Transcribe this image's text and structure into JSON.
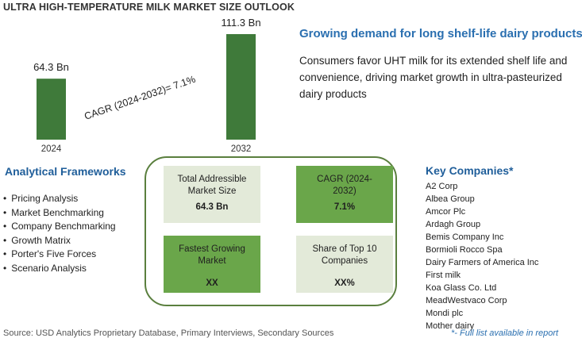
{
  "title": "ULTRA HIGH-TEMPERATURE MILK MARKET SIZE OUTLOOK",
  "chart_data": {
    "type": "bar",
    "categories": [
      "2024",
      "2032"
    ],
    "values": [
      64.3,
      111.3
    ],
    "value_labels": [
      "64.3 Bn",
      "111.3 Bn"
    ],
    "annotation": "CAGR (2024-2032)=  7.1%",
    "bar_color": "#3f7a3a"
  },
  "headline": {
    "heading": "Growing demand for long shelf-life dairy products",
    "description": "Consumers favor UHT milk for its extended shelf life and convenience, driving market growth in ultra-pasteurized dairy products"
  },
  "frameworks": {
    "title": "Analytical Frameworks",
    "items": [
      "Pricing Analysis",
      "Market Benchmarking",
      "Company Benchmarking",
      "Growth Matrix",
      "Porter's Five Forces",
      "Scenario Analysis"
    ]
  },
  "kpis": {
    "tam": {
      "label": "Total Addressible Market Size",
      "value": "64.3 Bn"
    },
    "cagr": {
      "label": "CAGR (2024-2032)",
      "value": "7.1%"
    },
    "fastest": {
      "label": "Fastest Growing Market",
      "value": "XX"
    },
    "share": {
      "label": "Share of Top 10 Companies",
      "value": "XX%"
    }
  },
  "companies": {
    "title": "Key Companies*",
    "items": [
      "A2 Corp",
      "Albea Group",
      "Amcor Plc",
      "Ardagh Group",
      "Bemis Company Inc",
      "Bormioli Rocco Spa",
      "Dairy Farmers of America Inc",
      "First milk",
      "Koa Glass Co. Ltd",
      "MeadWestvaco Corp",
      "Mondi plc",
      "Mother dairy"
    ]
  },
  "footer": {
    "source": "Source: USD Analytics Proprietary Database, Primary Interviews, Secondary Sources",
    "note": "*- Full list available in report"
  },
  "colors": {
    "accent_blue": "#2a6fb0",
    "bar_green": "#3f7a3a",
    "card_dark": "#6aa64a",
    "card_light": "#e3ead9",
    "frame": "#5a7f3e"
  }
}
